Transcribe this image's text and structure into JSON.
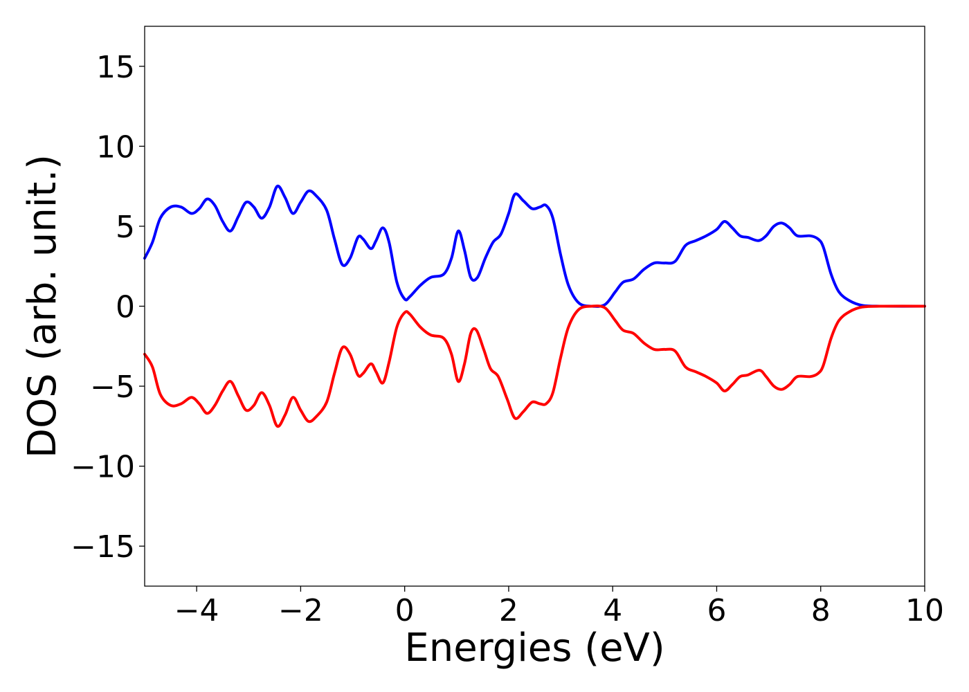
{
  "chart_data": {
    "type": "line",
    "title": "",
    "xlabel": "Energies (eV)",
    "ylabel": "DOS (arb. unit.)",
    "xlim": [
      -5,
      10
    ],
    "ylim": [
      -17.5,
      17.5
    ],
    "xticks": [
      -4,
      -2,
      0,
      2,
      4,
      6,
      8,
      10
    ],
    "yticks": [
      -15,
      -10,
      -5,
      0,
      5,
      10,
      15
    ],
    "xtick_labels": [
      "−4",
      "−2",
      "0",
      "2",
      "4",
      "6",
      "8",
      "10"
    ],
    "ytick_labels": [
      "−15",
      "−10",
      "−5",
      "0",
      "5",
      "10",
      "15"
    ],
    "grid": false,
    "legend": "none",
    "series": [
      {
        "color": "#0000ff",
        "points": [
          [
            -5.0,
            3.0
          ],
          [
            -4.85,
            4.0
          ],
          [
            -4.7,
            5.5
          ],
          [
            -4.5,
            6.2
          ],
          [
            -4.3,
            6.2
          ],
          [
            -4.1,
            5.8
          ],
          [
            -3.95,
            6.1
          ],
          [
            -3.8,
            6.7
          ],
          [
            -3.65,
            6.3
          ],
          [
            -3.5,
            5.3
          ],
          [
            -3.35,
            4.7
          ],
          [
            -3.2,
            5.6
          ],
          [
            -3.05,
            6.5
          ],
          [
            -2.9,
            6.2
          ],
          [
            -2.75,
            5.5
          ],
          [
            -2.6,
            6.2
          ],
          [
            -2.45,
            7.5
          ],
          [
            -2.3,
            6.8
          ],
          [
            -2.15,
            5.8
          ],
          [
            -2.0,
            6.5
          ],
          [
            -1.85,
            7.2
          ],
          [
            -1.7,
            6.9
          ],
          [
            -1.5,
            6.0
          ],
          [
            -1.35,
            4.2
          ],
          [
            -1.2,
            2.6
          ],
          [
            -1.05,
            3.0
          ],
          [
            -0.9,
            4.3
          ],
          [
            -0.8,
            4.2
          ],
          [
            -0.65,
            3.6
          ],
          [
            -0.55,
            4.1
          ],
          [
            -0.42,
            4.9
          ],
          [
            -0.3,
            4.0
          ],
          [
            -0.15,
            1.5
          ],
          [
            0.0,
            0.45
          ],
          [
            0.1,
            0.6
          ],
          [
            0.3,
            1.3
          ],
          [
            0.5,
            1.8
          ],
          [
            0.75,
            2.0
          ],
          [
            0.9,
            3.0
          ],
          [
            1.03,
            4.7
          ],
          [
            1.15,
            3.5
          ],
          [
            1.27,
            1.8
          ],
          [
            1.4,
            1.8
          ],
          [
            1.55,
            3.0
          ],
          [
            1.7,
            4.0
          ],
          [
            1.85,
            4.5
          ],
          [
            2.0,
            5.8
          ],
          [
            2.12,
            7.0
          ],
          [
            2.28,
            6.6
          ],
          [
            2.45,
            6.1
          ],
          [
            2.6,
            6.2
          ],
          [
            2.72,
            6.3
          ],
          [
            2.85,
            5.5
          ],
          [
            3.0,
            3.2
          ],
          [
            3.15,
            1.3
          ],
          [
            3.35,
            0.2
          ],
          [
            3.6,
            0.0
          ],
          [
            3.85,
            0.1
          ],
          [
            4.05,
            0.9
          ],
          [
            4.2,
            1.5
          ],
          [
            4.4,
            1.7
          ],
          [
            4.6,
            2.3
          ],
          [
            4.8,
            2.7
          ],
          [
            5.0,
            2.7
          ],
          [
            5.2,
            2.8
          ],
          [
            5.4,
            3.8
          ],
          [
            5.6,
            4.1
          ],
          [
            5.8,
            4.4
          ],
          [
            6.0,
            4.8
          ],
          [
            6.15,
            5.3
          ],
          [
            6.3,
            4.9
          ],
          [
            6.45,
            4.4
          ],
          [
            6.6,
            4.3
          ],
          [
            6.8,
            4.1
          ],
          [
            6.95,
            4.4
          ],
          [
            7.1,
            5.0
          ],
          [
            7.25,
            5.2
          ],
          [
            7.4,
            4.9
          ],
          [
            7.55,
            4.4
          ],
          [
            7.8,
            4.4
          ],
          [
            7.95,
            4.2
          ],
          [
            8.05,
            3.7
          ],
          [
            8.2,
            2.0
          ],
          [
            8.35,
            0.9
          ],
          [
            8.55,
            0.35
          ],
          [
            8.8,
            0.05
          ],
          [
            9.2,
            0.0
          ],
          [
            10.0,
            0.0
          ]
        ]
      },
      {
        "color": "#ff0000",
        "points": [
          [
            -5.0,
            -3.0
          ],
          [
            -4.85,
            -3.8
          ],
          [
            -4.7,
            -5.5
          ],
          [
            -4.5,
            -6.2
          ],
          [
            -4.3,
            -6.1
          ],
          [
            -4.1,
            -5.7
          ],
          [
            -3.95,
            -6.1
          ],
          [
            -3.8,
            -6.7
          ],
          [
            -3.65,
            -6.2
          ],
          [
            -3.5,
            -5.3
          ],
          [
            -3.35,
            -4.7
          ],
          [
            -3.2,
            -5.6
          ],
          [
            -3.05,
            -6.5
          ],
          [
            -2.9,
            -6.2
          ],
          [
            -2.75,
            -5.4
          ],
          [
            -2.6,
            -6.2
          ],
          [
            -2.45,
            -7.5
          ],
          [
            -2.3,
            -6.8
          ],
          [
            -2.15,
            -5.7
          ],
          [
            -2.0,
            -6.5
          ],
          [
            -1.85,
            -7.2
          ],
          [
            -1.7,
            -6.9
          ],
          [
            -1.5,
            -6.0
          ],
          [
            -1.35,
            -4.2
          ],
          [
            -1.2,
            -2.6
          ],
          [
            -1.05,
            -3.0
          ],
          [
            -0.9,
            -4.3
          ],
          [
            -0.8,
            -4.2
          ],
          [
            -0.65,
            -3.6
          ],
          [
            -0.55,
            -4.1
          ],
          [
            -0.42,
            -4.8
          ],
          [
            -0.3,
            -3.5
          ],
          [
            -0.15,
            -1.3
          ],
          [
            0.0,
            -0.4
          ],
          [
            0.1,
            -0.5
          ],
          [
            0.3,
            -1.3
          ],
          [
            0.5,
            -1.8
          ],
          [
            0.75,
            -2.0
          ],
          [
            0.9,
            -3.0
          ],
          [
            1.03,
            -4.7
          ],
          [
            1.15,
            -3.6
          ],
          [
            1.27,
            -1.7
          ],
          [
            1.38,
            -1.5
          ],
          [
            1.52,
            -2.7
          ],
          [
            1.65,
            -3.9
          ],
          [
            1.8,
            -4.4
          ],
          [
            1.97,
            -5.8
          ],
          [
            2.12,
            -7.0
          ],
          [
            2.28,
            -6.6
          ],
          [
            2.45,
            -6.0
          ],
          [
            2.6,
            -6.1
          ],
          [
            2.72,
            -6.1
          ],
          [
            2.85,
            -5.4
          ],
          [
            3.0,
            -3.2
          ],
          [
            3.15,
            -1.3
          ],
          [
            3.35,
            -0.2
          ],
          [
            3.6,
            0.0
          ],
          [
            3.85,
            -0.1
          ],
          [
            4.05,
            -0.9
          ],
          [
            4.2,
            -1.5
          ],
          [
            4.4,
            -1.7
          ],
          [
            4.6,
            -2.3
          ],
          [
            4.8,
            -2.7
          ],
          [
            5.0,
            -2.7
          ],
          [
            5.2,
            -2.8
          ],
          [
            5.4,
            -3.8
          ],
          [
            5.6,
            -4.1
          ],
          [
            5.8,
            -4.4
          ],
          [
            6.0,
            -4.8
          ],
          [
            6.15,
            -5.3
          ],
          [
            6.3,
            -4.9
          ],
          [
            6.45,
            -4.4
          ],
          [
            6.6,
            -4.3
          ],
          [
            6.82,
            -4.0
          ],
          [
            6.95,
            -4.4
          ],
          [
            7.1,
            -5.0
          ],
          [
            7.25,
            -5.2
          ],
          [
            7.4,
            -4.9
          ],
          [
            7.55,
            -4.4
          ],
          [
            7.8,
            -4.4
          ],
          [
            7.95,
            -4.2
          ],
          [
            8.05,
            -3.7
          ],
          [
            8.2,
            -2.0
          ],
          [
            8.35,
            -0.9
          ],
          [
            8.55,
            -0.35
          ],
          [
            8.8,
            -0.05
          ],
          [
            9.2,
            0.0
          ],
          [
            10.0,
            0.0
          ]
        ]
      }
    ]
  }
}
